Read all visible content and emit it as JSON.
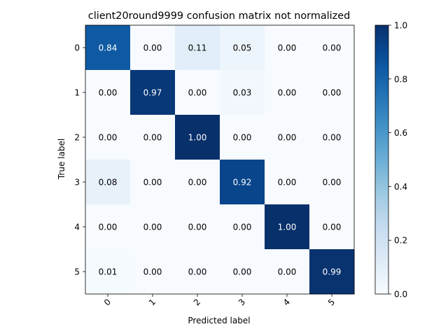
{
  "chart_data": {
    "type": "heatmap",
    "title": "client20round9999 confusion matrix not normalized",
    "xlabel": "Predicted label",
    "ylabel": "True label",
    "x_ticks": [
      "0",
      "1",
      "2",
      "3",
      "4",
      "5"
    ],
    "y_ticks": [
      "0",
      "1",
      "2",
      "3",
      "4",
      "5"
    ],
    "matrix": [
      [
        0.84,
        0.0,
        0.11,
        0.05,
        0.0,
        0.0
      ],
      [
        0.0,
        0.97,
        0.0,
        0.03,
        0.0,
        0.0
      ],
      [
        0.0,
        0.0,
        1.0,
        0.0,
        0.0,
        0.0
      ],
      [
        0.08,
        0.0,
        0.0,
        0.92,
        0.0,
        0.0
      ],
      [
        0.0,
        0.0,
        0.0,
        0.0,
        1.0,
        0.0
      ],
      [
        0.01,
        0.0,
        0.0,
        0.0,
        0.0,
        0.99
      ]
    ],
    "value_format": "2 decimals",
    "colormap": "Blues",
    "vmin": 0.0,
    "vmax": 1.0,
    "colorbar_ticks": [
      "0.0",
      "0.2",
      "0.4",
      "0.6",
      "0.8",
      "1.0"
    ],
    "colorbar_values": [
      0.0,
      0.2,
      0.4,
      0.6,
      0.8,
      1.0
    ],
    "x_tick_rotation": "45 degrees",
    "text_color_dark": "#000000",
    "text_color_light": "#ffffff",
    "grid": false
  }
}
